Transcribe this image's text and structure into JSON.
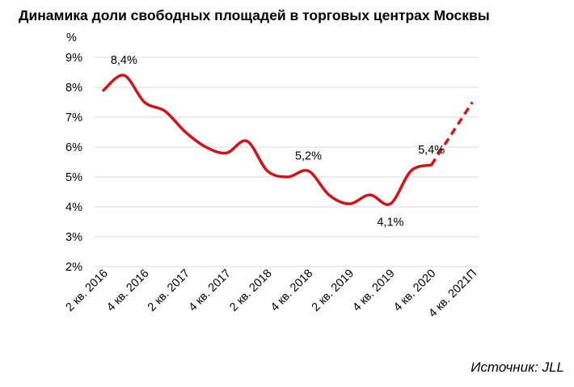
{
  "chart_data": {
    "type": "line",
    "title": "Динамика доли свободных площадей в торговых центрах Москвы",
    "ylabel": "%",
    "ylim": [
      2,
      9
    ],
    "yticks": [
      "2%",
      "3%",
      "4%",
      "5%",
      "6%",
      "7%",
      "8%",
      "9%"
    ],
    "grid": true,
    "categories": [
      "2 кв. 2016",
      "4 кв. 2016",
      "2 кв. 2017",
      "4 кв. 2017",
      "2 кв. 2018",
      "4 кв. 2018",
      "2 кв. 2019",
      "4 кв. 2019",
      "4 кв. 2020",
      "4 кв. 2021П"
    ],
    "series": [
      {
        "color": "#d0141c",
        "points": [
          {
            "x": 0.0,
            "y": 7.9
          },
          {
            "x": 0.5,
            "y": 8.4
          },
          {
            "x": 1.0,
            "y": 7.5
          },
          {
            "x": 1.5,
            "y": 7.2
          },
          {
            "x": 2.0,
            "y": 6.5
          },
          {
            "x": 2.5,
            "y": 6.0
          },
          {
            "x": 3.0,
            "y": 5.8
          },
          {
            "x": 3.5,
            "y": 6.2
          },
          {
            "x": 4.0,
            "y": 5.2
          },
          {
            "x": 4.5,
            "y": 5.0
          },
          {
            "x": 5.0,
            "y": 5.2
          },
          {
            "x": 5.5,
            "y": 4.4
          },
          {
            "x": 6.0,
            "y": 4.1
          },
          {
            "x": 6.5,
            "y": 4.4
          },
          {
            "x": 7.0,
            "y": 4.1
          },
          {
            "x": 7.5,
            "y": 5.2
          },
          {
            "x": 8.0,
            "y": 5.4
          }
        ],
        "forecast_points": [
          {
            "x": 8.0,
            "y": 5.4
          },
          {
            "x": 9.0,
            "y": 7.5
          }
        ]
      }
    ],
    "annotations": [
      {
        "text": "8,4%",
        "x": 0.5,
        "y": 8.4,
        "position": "above"
      },
      {
        "text": "5,2%",
        "x": 5.0,
        "y": 5.2,
        "position": "above"
      },
      {
        "text": "4,1%",
        "x": 7.0,
        "y": 4.1,
        "position": "below"
      },
      {
        "text": "5,4%",
        "x": 8.0,
        "y": 5.4,
        "position": "above"
      }
    ]
  },
  "source": "Источник: JLL"
}
